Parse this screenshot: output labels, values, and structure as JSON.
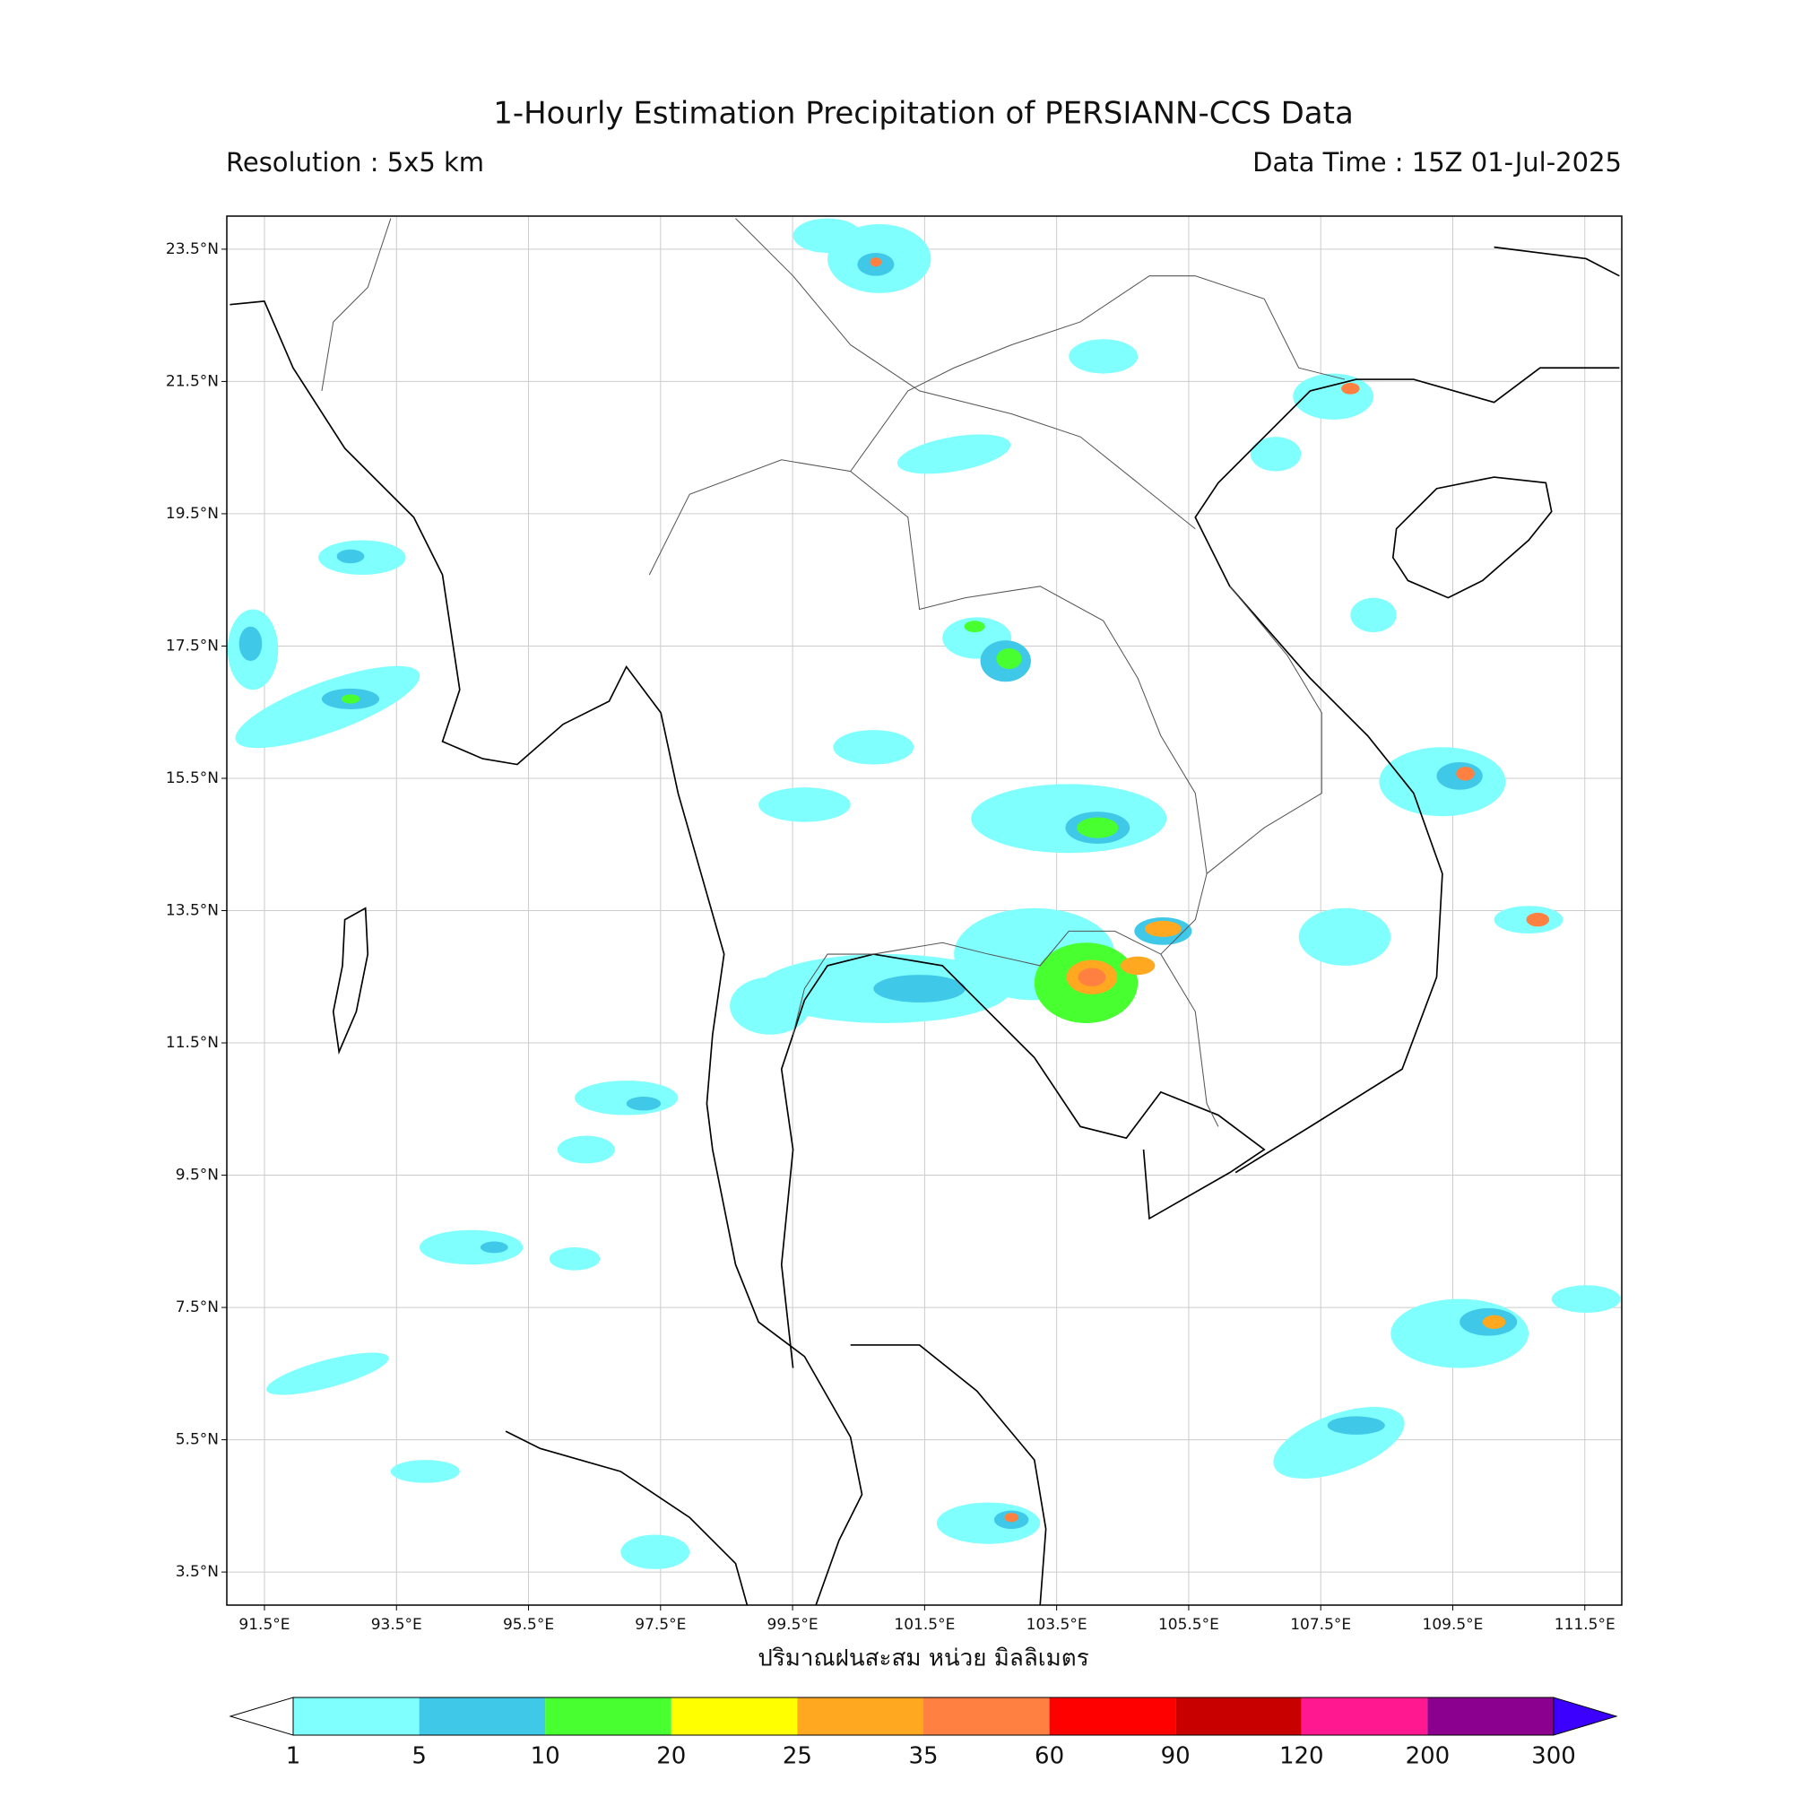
{
  "title": "1-Hourly Estimation Precipitation of PERSIANN-CCS Data",
  "resolution": "Resolution : 5x5 km",
  "data_time": "Data Time : 15Z 01-Jul-2025",
  "map": {
    "xlim": [
      90.93,
      112.06
    ],
    "ylim": [
      3.0,
      24.0
    ],
    "grid": true,
    "xticks": [
      {
        "value": 91.5,
        "label": "91.5°E"
      },
      {
        "value": 93.5,
        "label": "93.5°E"
      },
      {
        "value": 95.5,
        "label": "95.5°E"
      },
      {
        "value": 97.5,
        "label": "97.5°E"
      },
      {
        "value": 99.5,
        "label": "99.5°E"
      },
      {
        "value": 101.5,
        "label": "101.5°E"
      },
      {
        "value": 103.5,
        "label": "103.5°E"
      },
      {
        "value": 105.5,
        "label": "105.5°E"
      },
      {
        "value": 107.5,
        "label": "107.5°E"
      },
      {
        "value": 109.5,
        "label": "109.5°E"
      },
      {
        "value": 111.5,
        "label": "111.5°E"
      }
    ],
    "yticks": [
      {
        "value": 3.5,
        "label": "3.5°N"
      },
      {
        "value": 5.5,
        "label": "5.5°N"
      },
      {
        "value": 7.5,
        "label": "7.5°N"
      },
      {
        "value": 9.5,
        "label": "9.5°N"
      },
      {
        "value": 11.5,
        "label": "11.5°N"
      },
      {
        "value": 13.5,
        "label": "13.5°N"
      },
      {
        "value": 15.5,
        "label": "15.5°N"
      },
      {
        "value": 17.5,
        "label": "17.5°N"
      },
      {
        "value": 19.5,
        "label": "19.5°N"
      },
      {
        "value": 21.5,
        "label": "21.5°N"
      },
      {
        "value": 23.5,
        "label": "23.5°N"
      }
    ]
  },
  "x_label": "ปริมาณฝนสะสม หน่วย มิลลิเมตร",
  "colorbar": {
    "levels": [
      1,
      5,
      10,
      20,
      25,
      35,
      60,
      90,
      120,
      200,
      300
    ],
    "colors": [
      "#80ffff",
      "#40c8e8",
      "#48ff30",
      "#ffff00",
      "#ffa820",
      "#ff8040",
      "#ff0000",
      "#c80000",
      "#ff1890",
      "#8c0090"
    ],
    "under_color": "#ffffff",
    "over_color": "#3c00ff"
  }
}
